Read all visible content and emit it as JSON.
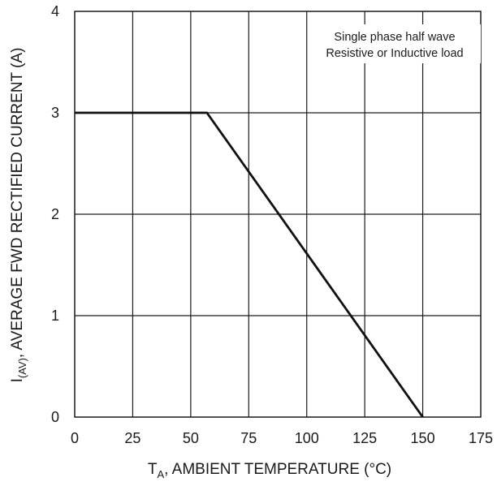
{
  "chart_data": {
    "type": "line",
    "x_ticks": [
      0,
      25,
      50,
      75,
      100,
      125,
      150,
      175
    ],
    "y_ticks": [
      0,
      1,
      2,
      3,
      4
    ],
    "xlim": [
      0,
      175
    ],
    "ylim": [
      0,
      4
    ],
    "grid": true,
    "xlabel": {
      "main": "T",
      "sub": "A",
      "rest": ", AMBIENT TEMPERATURE (°C)"
    },
    "ylabel": {
      "main": "I",
      "sub": "(AV)",
      "rest": ", AVERAGE FWD RECTIFIED CURRENT (A)"
    },
    "annotation": {
      "line1": "Single phase half wave",
      "line2": "Resistive or Inductive load"
    },
    "series": [
      {
        "x": [
          0,
          57,
          150
        ],
        "y": [
          3,
          3,
          0
        ]
      }
    ],
    "line_color": "#111111",
    "grid_color": "#1a1a1a"
  }
}
